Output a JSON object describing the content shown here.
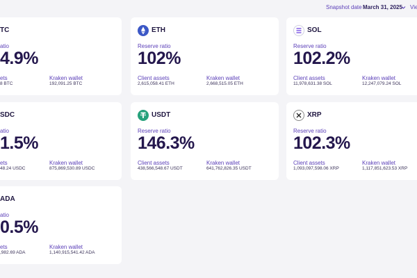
{
  "header": {
    "snapshot_label": "Snapshot date",
    "date": "March 31, 2025",
    "view": "Vie"
  },
  "cards": [
    {
      "name": "TC",
      "reserve_label": "atio",
      "ratio": "4.9%",
      "client_label": "ets",
      "client_value": "8 BTC",
      "wallet_label": "Kraken wallet",
      "wallet_value": "192,091.25 BTC"
    },
    {
      "name": "ETH",
      "reserve_label": "Reserve ratio",
      "ratio": "102%",
      "client_label": "Client assets",
      "client_value": "2,615,058.41 ETH",
      "wallet_label": "Kraken wallet",
      "wallet_value": "2,668,515.05 ETH"
    },
    {
      "name": "SOL",
      "reserve_label": "Reserve ratio",
      "ratio": "102.2%",
      "client_label": "Client assets",
      "client_value": "11,978,631.38 SOL",
      "wallet_label": "Kraken wallet",
      "wallet_value": "12,247,079.24 SOL"
    },
    {
      "name": "SDC",
      "reserve_label": "atio",
      "ratio": "1.5%",
      "client_label": "ets",
      "client_value": "48.24 USDC",
      "wallet_label": "Kraken wallet",
      "wallet_value": "875,869,530.89 USDC"
    },
    {
      "name": "USDT",
      "reserve_label": "Reserve ratio",
      "ratio": "146.3%",
      "client_label": "Client assets",
      "client_value": "438,566,548.67 USDT",
      "wallet_label": "Kraken wallet",
      "wallet_value": "641,762,826.35 USDT"
    },
    {
      "name": "XRP",
      "reserve_label": "Reserve ratio",
      "ratio": "102.3%",
      "client_label": "Client assets",
      "client_value": "1,093,097,598.06 XRP",
      "wallet_label": "Kraken wallet",
      "wallet_value": "1,117,851,623.53 XRP"
    },
    {
      "name": "ADA",
      "reserve_label": "atio",
      "ratio": "0.5%",
      "client_label": "ets",
      "client_value": ",982.69 ADA",
      "wallet_label": "Kraken wallet",
      "wallet_value": "1,140,915,541.42 ADA"
    }
  ]
}
